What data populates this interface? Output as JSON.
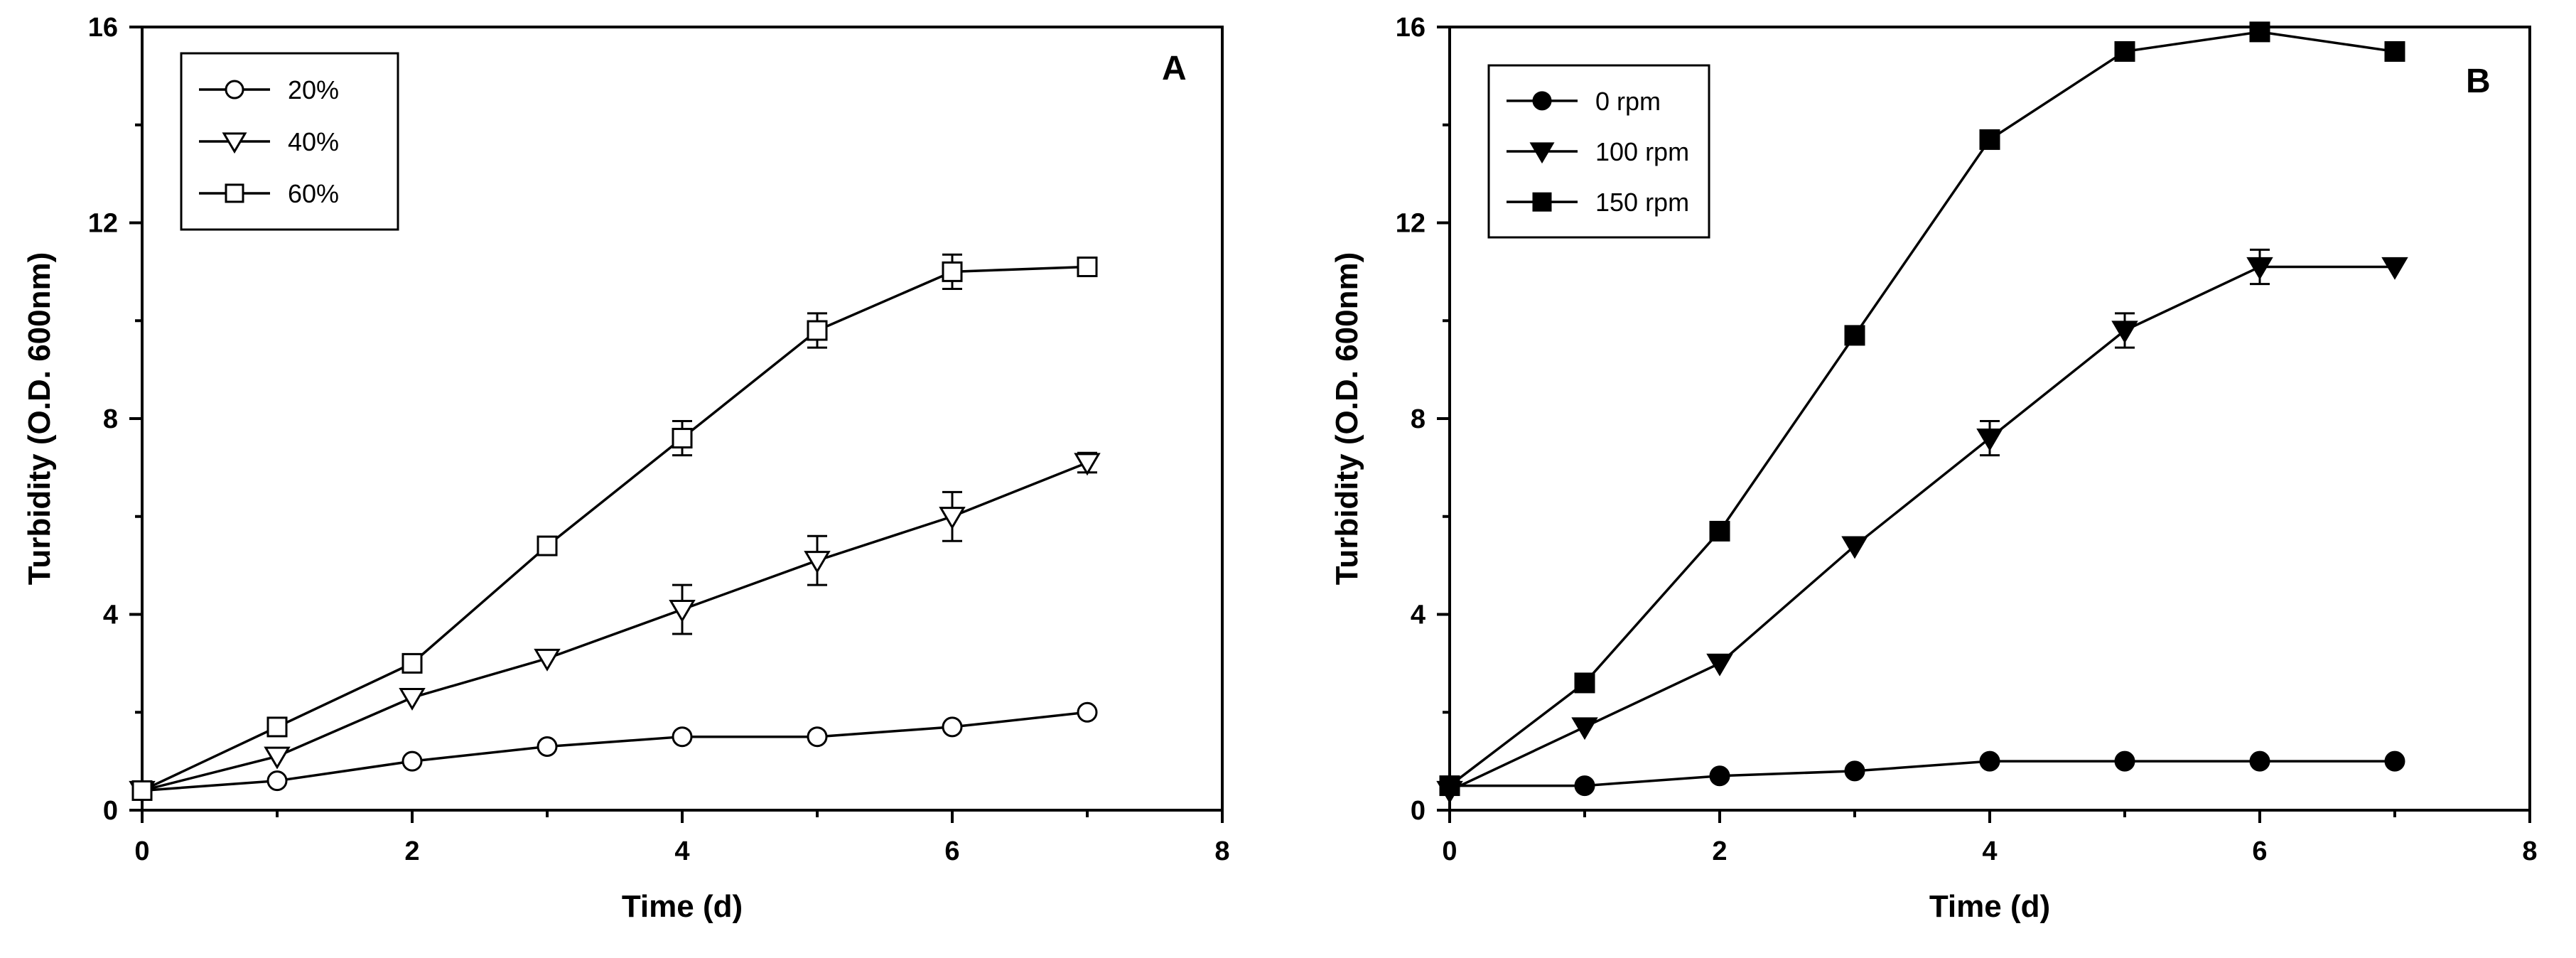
{
  "chart_data": [
    {
      "panel": "A",
      "type": "line",
      "title": "",
      "xlabel": "Time (d)",
      "ylabel": "Turbidity (O.D. 600nm)",
      "xlim": [
        0,
        8
      ],
      "ylim": [
        0,
        16
      ],
      "xticks": [
        0,
        2,
        4,
        6,
        8
      ],
      "yticks": [
        0,
        4,
        8,
        12,
        16
      ],
      "legend_position": "top-left",
      "series": [
        {
          "name": "20%",
          "marker": "open-circle",
          "x": [
            0,
            1,
            2,
            3,
            4,
            5,
            6,
            7
          ],
          "values": [
            0.4,
            0.6,
            1.0,
            1.3,
            1.5,
            1.5,
            1.7,
            2.0
          ],
          "errors": [
            0,
            0,
            0,
            0,
            0,
            0,
            0,
            0
          ]
        },
        {
          "name": "40%",
          "marker": "open-triangle-down",
          "x": [
            0,
            1,
            2,
            3,
            4,
            5,
            6,
            7
          ],
          "values": [
            0.4,
            1.1,
            2.3,
            3.1,
            4.1,
            5.1,
            6.0,
            7.1
          ],
          "errors": [
            0,
            0,
            0,
            0,
            0.5,
            0.5,
            0.5,
            0.2
          ]
        },
        {
          "name": "60%",
          "marker": "open-square",
          "x": [
            0,
            1,
            2,
            3,
            4,
            5,
            6,
            7
          ],
          "values": [
            0.4,
            1.7,
            3.0,
            5.4,
            7.6,
            9.8,
            11.0,
            11.1
          ],
          "errors": [
            0,
            0,
            0,
            0,
            0.35,
            0.35,
            0.35,
            0
          ]
        }
      ]
    },
    {
      "panel": "B",
      "type": "line",
      "title": "",
      "xlabel": "Time (d)",
      "ylabel": "Turbidity (O.D. 600nm)",
      "xlim": [
        0,
        8
      ],
      "ylim": [
        0,
        16
      ],
      "xticks": [
        0,
        2,
        4,
        6,
        8
      ],
      "yticks": [
        0,
        4,
        8,
        12,
        16
      ],
      "legend_position": "top-left",
      "series": [
        {
          "name": "0 rpm",
          "marker": "filled-circle",
          "x": [
            0,
            1,
            2,
            3,
            4,
            5,
            6,
            7
          ],
          "values": [
            0.5,
            0.5,
            0.7,
            0.8,
            1.0,
            1.0,
            1.0,
            1.0
          ],
          "errors": [
            0,
            0,
            0,
            0,
            0,
            0,
            0,
            0
          ]
        },
        {
          "name": "100 rpm",
          "marker": "filled-triangle-down",
          "x": [
            0,
            1,
            2,
            3,
            4,
            5,
            6,
            7
          ],
          "values": [
            0.4,
            1.7,
            3.0,
            5.4,
            7.6,
            9.8,
            11.1,
            11.1
          ],
          "errors": [
            0,
            0,
            0,
            0,
            0.35,
            0.35,
            0.35,
            0
          ]
        },
        {
          "name": "150 rpm",
          "marker": "filled-square",
          "x": [
            0,
            1,
            2,
            3,
            4,
            5,
            6,
            7
          ],
          "values": [
            0.5,
            2.6,
            5.7,
            9.7,
            13.7,
            15.5,
            15.9,
            15.5
          ],
          "errors": [
            0,
            0,
            0,
            0,
            0,
            0,
            0,
            0
          ]
        }
      ]
    }
  ]
}
